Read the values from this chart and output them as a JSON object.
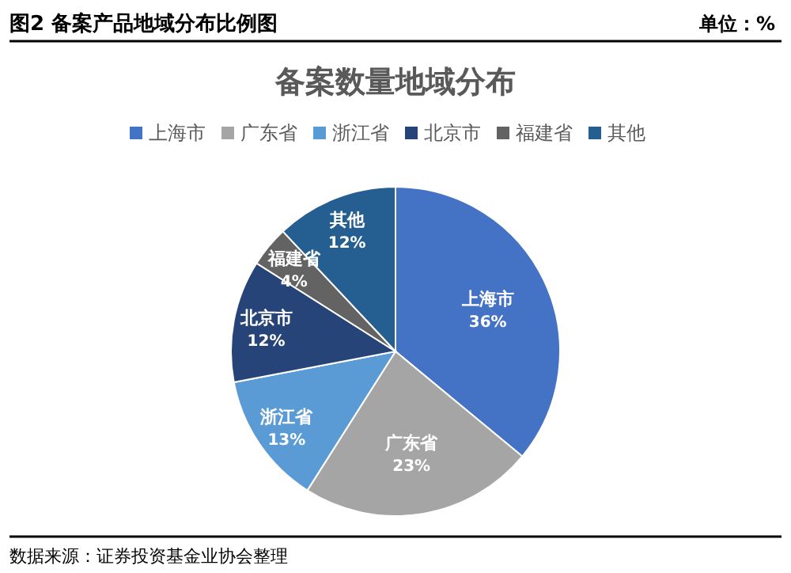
{
  "chart_data": {
    "type": "pie",
    "title": "备案数量地域分布",
    "annotations": [
      "图2 备案产品地域分布比例图",
      "单位：%",
      "数据来源：证券投资基金业协会整理"
    ],
    "categories": [
      "上海市",
      "广东省",
      "浙江省",
      "北京市",
      "福建省",
      "其他"
    ],
    "values": [
      36,
      23,
      13,
      12,
      4,
      12
    ],
    "colors": [
      "#4472c4",
      "#a5a5a5",
      "#5b9bd5",
      "#264478",
      "#636363",
      "#255e91"
    ],
    "value_labels": [
      "36%",
      "23%",
      "13%",
      "12%",
      "4%",
      "12%"
    ],
    "legend": "top"
  }
}
